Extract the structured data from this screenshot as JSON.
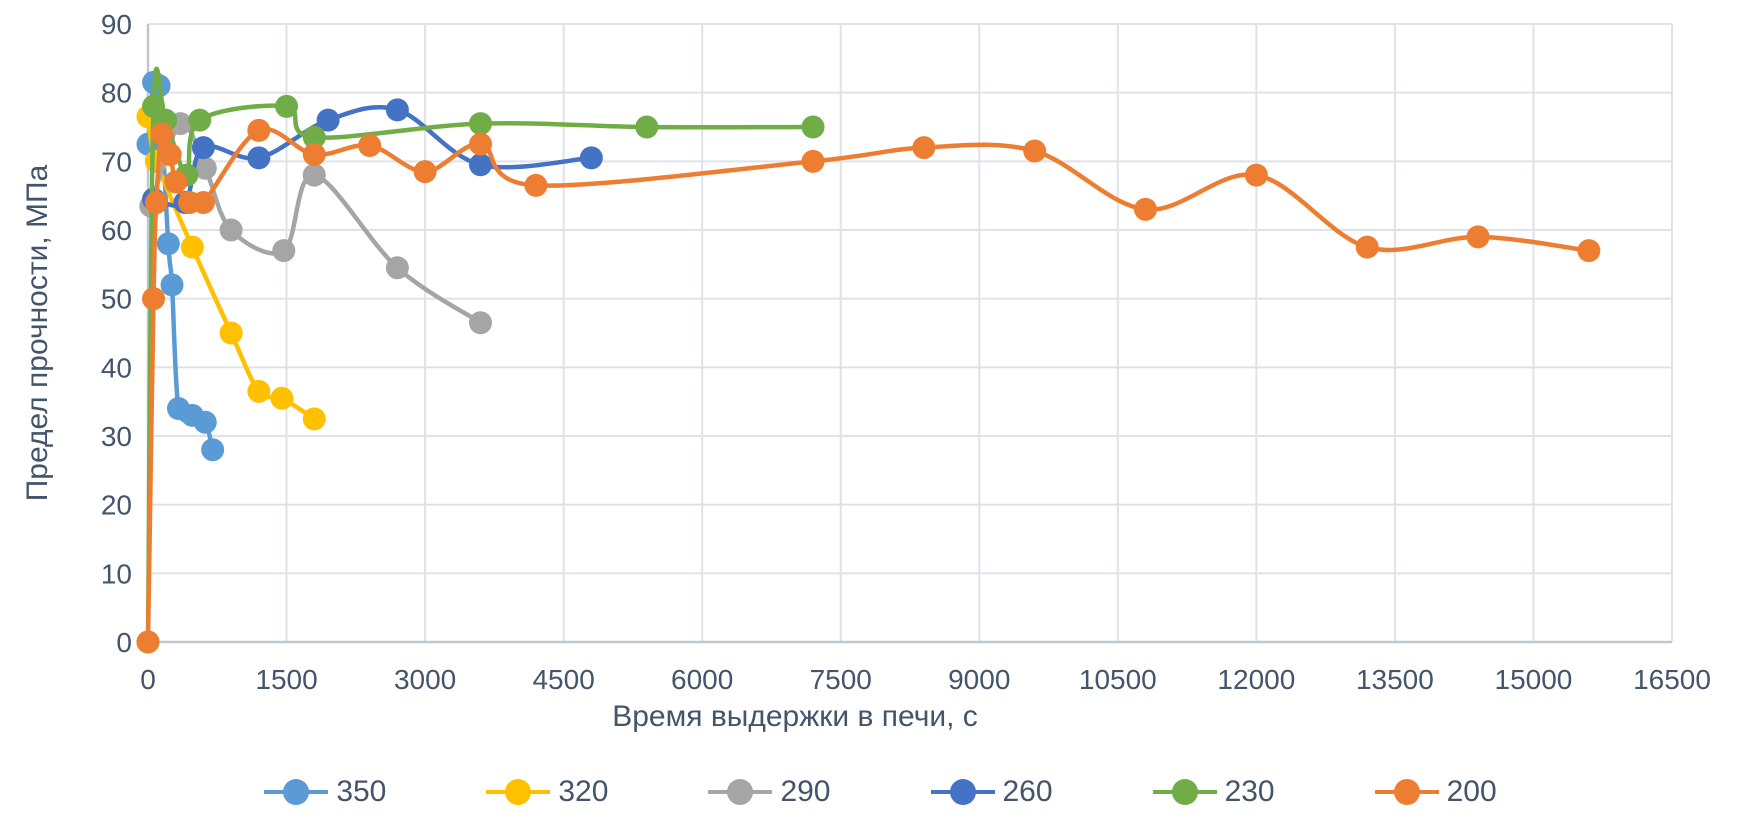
{
  "chart_data": {
    "type": "line",
    "title": "",
    "xlabel": "Время выдержки в печи, с",
    "ylabel": "Предел прочности, МПа",
    "xlim": [
      0,
      16500
    ],
    "ylim": [
      0,
      90
    ],
    "x_ticks": [
      0,
      1500,
      3000,
      4500,
      6000,
      7500,
      9000,
      10500,
      12000,
      13500,
      15000,
      16500
    ],
    "y_ticks": [
      0,
      10,
      20,
      30,
      40,
      50,
      60,
      70,
      80,
      90
    ],
    "grid": true,
    "smooth": true,
    "marker": "circle",
    "legend_position": "bottom",
    "series": [
      {
        "name": "350",
        "color": "#5B9BD5",
        "points": [
          [
            0,
            72.5
          ],
          [
            60,
            81.5
          ],
          [
            120,
            81
          ],
          [
            220,
            58
          ],
          [
            260,
            52
          ],
          [
            330,
            34
          ],
          [
            480,
            33
          ],
          [
            620,
            32
          ],
          [
            700,
            28
          ]
        ]
      },
      {
        "name": "320",
        "color": "#FFC000",
        "points": [
          [
            0,
            76.5
          ],
          [
            90,
            70
          ],
          [
            480,
            57.5
          ],
          [
            900,
            45
          ],
          [
            1200,
            36.5
          ],
          [
            1450,
            35.5
          ],
          [
            1800,
            32.5
          ]
        ]
      },
      {
        "name": "290",
        "color": "#A5A5A5",
        "points": [
          [
            30,
            63.5
          ],
          [
            350,
            75.5
          ],
          [
            620,
            69
          ],
          [
            900,
            60
          ],
          [
            1470,
            57
          ],
          [
            1800,
            68
          ],
          [
            2700,
            54.5
          ],
          [
            3600,
            46.5
          ]
        ]
      },
      {
        "name": "260",
        "color": "#4472C4",
        "points": [
          [
            60,
            64.5
          ],
          [
            400,
            64
          ],
          [
            600,
            72
          ],
          [
            1200,
            70.5
          ],
          [
            1950,
            76
          ],
          [
            2700,
            77.5
          ],
          [
            3600,
            69.5
          ],
          [
            4800,
            70.5
          ]
        ]
      },
      {
        "name": "230",
        "color": "#70AD47",
        "points": [
          [
            0,
            0
          ],
          [
            60,
            78
          ],
          [
            190,
            76
          ],
          [
            420,
            68
          ],
          [
            560,
            76
          ],
          [
            1500,
            78
          ],
          [
            1800,
            73.5
          ],
          [
            3600,
            75.5
          ],
          [
            5400,
            75
          ],
          [
            7200,
            75
          ]
        ]
      },
      {
        "name": "200",
        "color": "#ED7D31",
        "points": [
          [
            0,
            0
          ],
          [
            60,
            50
          ],
          [
            90,
            64
          ],
          [
            150,
            74
          ],
          [
            240,
            71
          ],
          [
            300,
            67
          ],
          [
            450,
            64
          ],
          [
            600,
            64
          ],
          [
            1200,
            74.5
          ],
          [
            1800,
            71
          ],
          [
            2400,
            72.3
          ],
          [
            3000,
            68.5
          ],
          [
            3600,
            72.5
          ],
          [
            4200,
            66.5
          ],
          [
            7200,
            70
          ],
          [
            8400,
            72
          ],
          [
            9600,
            71.5
          ],
          [
            10800,
            63
          ],
          [
            12000,
            68
          ],
          [
            13200,
            57.5
          ],
          [
            14400,
            59
          ],
          [
            15600,
            57
          ]
        ]
      }
    ]
  },
  "colors": {
    "text": "#44546A",
    "grid": "#DEE2EA",
    "axis": "#BFC7D1",
    "background": "#FFFFFF"
  }
}
